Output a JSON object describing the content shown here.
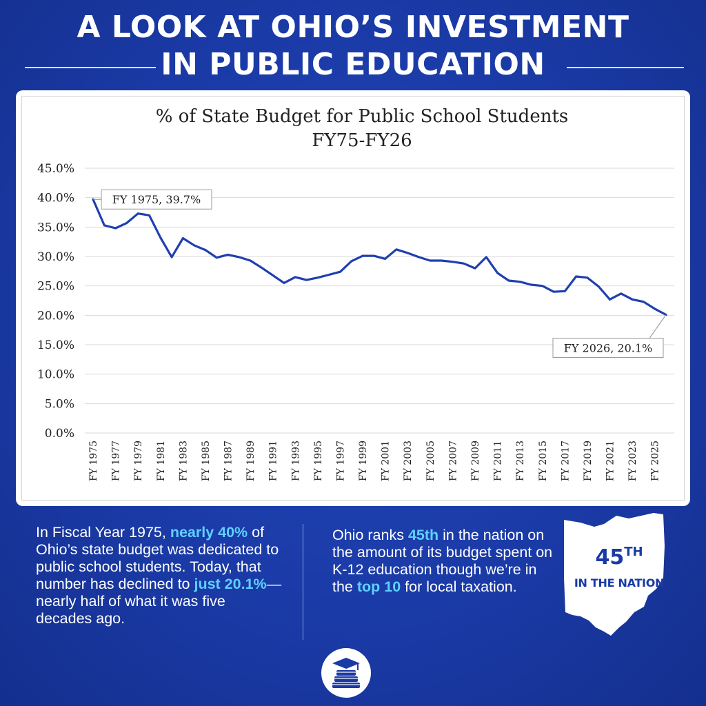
{
  "header": {
    "title_line_1": "A LOOK AT OHIO’S INVESTMENT",
    "title_line_2": "IN PUBLIC EDUCATION"
  },
  "chart_data": {
    "type": "line",
    "title": "% of State Budget for Public School Students",
    "subtitle": "FY75-FY26",
    "xlabel": "",
    "ylabel": "",
    "ylim": [
      0,
      45
    ],
    "yticks": [
      "0.0%",
      "5.0%",
      "10.0%",
      "15.0%",
      "20.0%",
      "25.0%",
      "30.0%",
      "35.0%",
      "40.0%",
      "45.0%"
    ],
    "grid": true,
    "line_color": "#1f3fb0",
    "x_tick_labels": [
      "FY 1975",
      "FY 1977",
      "FY 1979",
      "FY 1981",
      "FY 1983",
      "FY 1985",
      "FY 1987",
      "FY 1989",
      "FY 1991",
      "FY 1993",
      "FY 1995",
      "FY 1997",
      "FY 1999",
      "FY 2001",
      "FY 2003",
      "FY 2005",
      "FY 2007",
      "FY 2009",
      "FY 2011",
      "FY 2013",
      "FY 2015",
      "FY 2017",
      "FY 2019",
      "FY 2021",
      "FY 2023",
      "FY 2025"
    ],
    "x": [
      1975,
      1976,
      1977,
      1978,
      1979,
      1980,
      1981,
      1982,
      1983,
      1984,
      1985,
      1986,
      1987,
      1988,
      1989,
      1990,
      1991,
      1992,
      1993,
      1994,
      1995,
      1996,
      1997,
      1998,
      1999,
      2000,
      2001,
      2002,
      2003,
      2004,
      2005,
      2006,
      2007,
      2008,
      2009,
      2010,
      2011,
      2012,
      2013,
      2014,
      2015,
      2016,
      2017,
      2018,
      2019,
      2020,
      2021,
      2022,
      2023,
      2024,
      2025,
      2026
    ],
    "values": [
      39.7,
      35.3,
      34.8,
      35.7,
      37.3,
      37.0,
      33.2,
      29.9,
      33.1,
      31.9,
      31.1,
      29.8,
      30.3,
      29.9,
      29.3,
      28.1,
      26.8,
      25.5,
      26.5,
      26.0,
      26.4,
      26.9,
      27.4,
      29.2,
      30.1,
      30.1,
      29.6,
      31.2,
      30.6,
      29.9,
      29.3,
      29.3,
      29.1,
      28.8,
      28.0,
      29.9,
      27.2,
      25.9,
      25.7,
      25.2,
      25.0,
      24.0,
      24.1,
      26.6,
      26.4,
      24.9,
      22.7,
      23.7,
      22.7,
      22.3,
      21.1,
      20.1
    ],
    "annotations": [
      {
        "label": "FY 1975, 39.7%",
        "x": 1975,
        "y": 39.7
      },
      {
        "label": "FY 2026, 20.1%",
        "x": 2026,
        "y": 20.1
      }
    ]
  },
  "left_panel": {
    "t1": "In Fiscal Year 1975, ",
    "h1": "nearly 40%",
    "t2": " of Ohio’s state budget was dedicated to public school students. Today, that number has declined to ",
    "h2": "just 20.1%",
    "t3": "—nearly half of what it was five decades ago."
  },
  "right_panel": {
    "t1": "Ohio ranks ",
    "h1": "45th",
    "t2": " in the nation on the amount of its budget spent on K-12 education though we’re in the ",
    "h2": "top 10",
    "t3": " for local taxation."
  },
  "rank_badge": {
    "number": "45",
    "suffix": "TH",
    "caption": "IN THE NATION",
    "map_icon": "ohio-state-outline-icon"
  },
  "footer_icon": "graduation-cap-books-icon",
  "colors": {
    "background": "#1a3aa6",
    "highlight": "#5fd0ff",
    "line": "#1f3fb0"
  }
}
